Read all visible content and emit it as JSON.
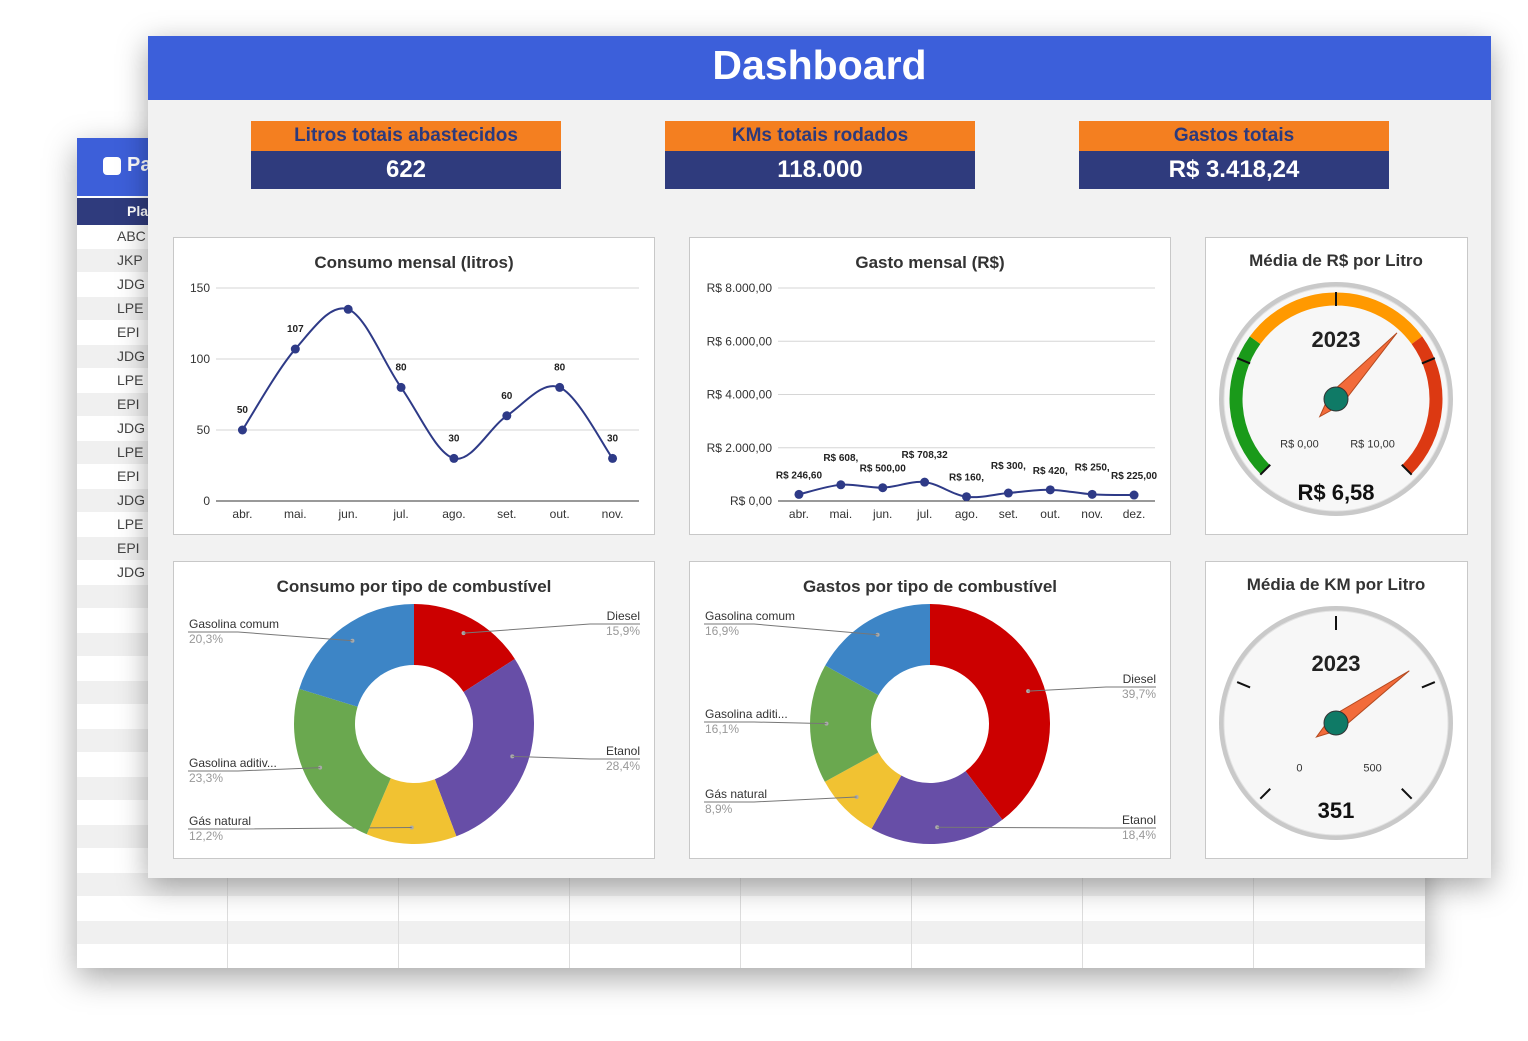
{
  "background_sheet": {
    "title": "Pa",
    "column_header": "Pla",
    "rows": [
      "ABC",
      "JKP",
      "JDG",
      "LPE",
      "EPI",
      "JDG",
      "LPE",
      "EPI",
      "JDG",
      "LPE",
      "EPI",
      "JDG",
      "LPE",
      "EPI",
      "JDG"
    ]
  },
  "header": {
    "title": "Dashboard"
  },
  "kpis": [
    {
      "label": "Litros totais abastecidos",
      "value": "622"
    },
    {
      "label": "KMs totais rodados",
      "value": "118.000"
    },
    {
      "label": "Gastos totais",
      "value": "R$ 3.418,24"
    }
  ],
  "colors": {
    "header": "#3c5fda",
    "kpi_label": "#f47f20",
    "kpi_value": "#2f3b7d",
    "line": "#2e3a87"
  },
  "chart_data": [
    {
      "type": "line",
      "title": "Consumo mensal (litros)",
      "categories": [
        "abr.",
        "mai.",
        "jun.",
        "jul.",
        "ago.",
        "set.",
        "out.",
        "nov."
      ],
      "values": [
        50,
        107,
        135,
        80,
        30,
        60,
        80,
        30
      ],
      "labels": [
        "50",
        "107",
        "",
        "80",
        "30",
        "60",
        "80",
        "30"
      ],
      "ylim": [
        0,
        150
      ],
      "yticks": [
        "0",
        "50",
        "100",
        "150"
      ],
      "ytick_values": [
        0,
        50,
        100,
        150
      ],
      "grid": true
    },
    {
      "type": "line",
      "title": "Gasto mensal (R$)",
      "categories": [
        "abr.",
        "mai.",
        "jun.",
        "jul.",
        "ago.",
        "set.",
        "out.",
        "nov.",
        "dez."
      ],
      "values": [
        246.6,
        608.0,
        500.0,
        708.32,
        160.0,
        300.0,
        420.0,
        250.0,
        225.0
      ],
      "labels": [
        "R$ 246,60",
        "R$ 608,",
        "R$ 500,00",
        "R$ 708,32",
        "R$ 160,",
        "R$ 300,",
        "R$ 420,",
        "R$ 250,",
        "R$ 225,00"
      ],
      "ylim": [
        0,
        8000
      ],
      "yticks": [
        "R$ 0,00",
        "R$ 2.000,00",
        "R$ 4.000,00",
        "R$ 6.000,00",
        "R$ 8.000,00"
      ],
      "ytick_values": [
        0,
        2000,
        4000,
        6000,
        8000
      ],
      "grid": true
    },
    {
      "type": "pie",
      "title": "Consumo por tipo de combustível",
      "slices": [
        {
          "name": "Diesel",
          "pct": "15,9%",
          "value": 15.9,
          "color": "#cc0000"
        },
        {
          "name": "Etanol",
          "pct": "28,4%",
          "value": 28.4,
          "color": "#674ea7"
        },
        {
          "name": "Gás natural",
          "pct": "12,2%",
          "value": 12.2,
          "color": "#f1c232"
        },
        {
          "name": "Gasolina aditiv...",
          "pct": "23,3%",
          "value": 23.3,
          "color": "#6aa84f"
        },
        {
          "name": "Gasolina comum",
          "pct": "20,3%",
          "value": 20.3,
          "color": "#3d85c6"
        }
      ]
    },
    {
      "type": "pie",
      "title": "Gastos por tipo de combustível",
      "slices": [
        {
          "name": "Diesel",
          "pct": "39,7%",
          "value": 39.7,
          "color": "#cc0000"
        },
        {
          "name": "Etanol",
          "pct": "18,4%",
          "value": 18.4,
          "color": "#674ea7"
        },
        {
          "name": "Gás natural",
          "pct": "8,9%",
          "value": 8.9,
          "color": "#f1c232"
        },
        {
          "name": "Gasolina aditi...",
          "pct": "16,1%",
          "value": 16.1,
          "color": "#6aa84f"
        },
        {
          "name": "Gasolina comum",
          "pct": "16,9%",
          "value": 16.9,
          "color": "#3d85c6"
        }
      ]
    }
  ],
  "gauges": [
    {
      "title": "Média de R$ por Litro",
      "year": "2023",
      "min_label": "R$ 0,00",
      "max_label": "R$ 10,00",
      "value_label": "R$ 6,58",
      "value": 6.58,
      "min": 0,
      "max": 10,
      "colored": true
    },
    {
      "title": "Média de KM por Litro",
      "year": "2023",
      "min_label": "0",
      "max_label": "500",
      "value_label": "351",
      "value": 351,
      "min": 0,
      "max": 500,
      "colored": false
    }
  ]
}
